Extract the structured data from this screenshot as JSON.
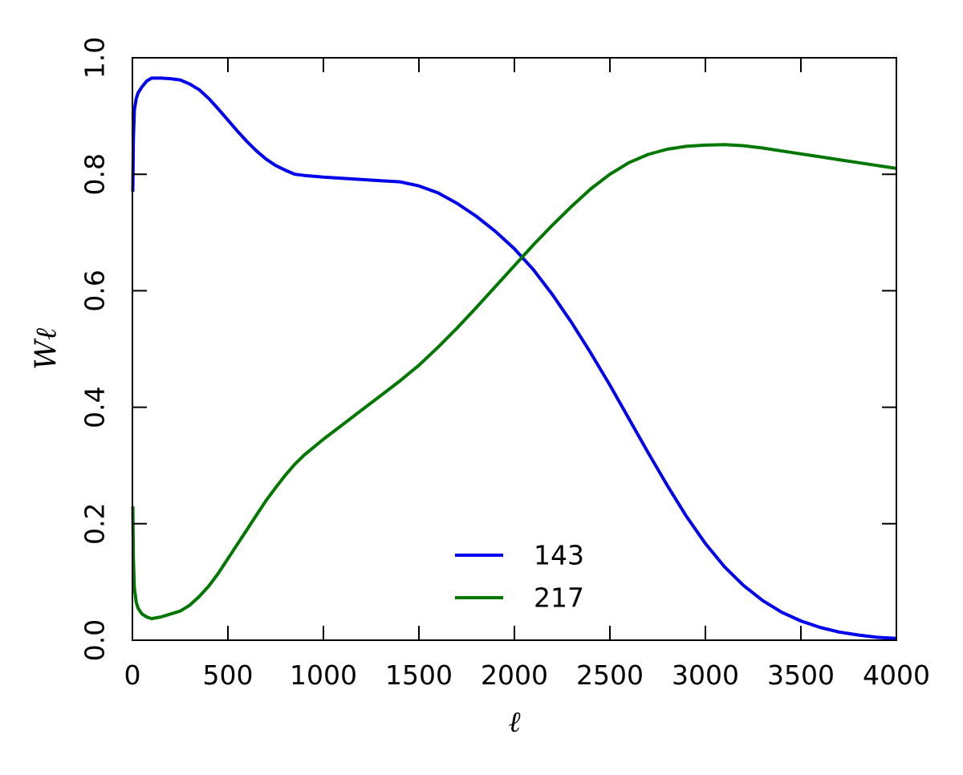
{
  "chart_data": {
    "type": "line",
    "title": "",
    "xlabel": "ℓ",
    "ylabel": "Wℓ",
    "xlim": [
      0,
      4000
    ],
    "ylim": [
      0.0,
      1.0
    ],
    "xticks": [
      "0",
      "500",
      "1000",
      "1500",
      "2000",
      "2500",
      "3000",
      "3500",
      "4000"
    ],
    "yticks": [
      "0.0",
      "0.2",
      "0.4",
      "0.6",
      "0.8",
      "1.0"
    ],
    "grid": false,
    "legend_position": "lower-center",
    "series": [
      {
        "name": "143",
        "color": "#0000ee",
        "x": [
          2,
          5,
          10,
          20,
          30,
          50,
          75,
          100,
          150,
          200,
          250,
          300,
          350,
          400,
          450,
          500,
          550,
          600,
          650,
          700,
          750,
          800,
          850,
          900,
          1000,
          1100,
          1200,
          1300,
          1400,
          1500,
          1600,
          1700,
          1800,
          1900,
          2000,
          2100,
          2200,
          2300,
          2400,
          2500,
          2600,
          2700,
          2800,
          2900,
          3000,
          3100,
          3200,
          3300,
          3400,
          3500,
          3600,
          3700,
          3800,
          3900,
          4000
        ],
        "y": [
          0.77,
          0.86,
          0.91,
          0.93,
          0.94,
          0.95,
          0.96,
          0.965,
          0.965,
          0.964,
          0.962,
          0.955,
          0.945,
          0.93,
          0.912,
          0.893,
          0.874,
          0.856,
          0.84,
          0.826,
          0.815,
          0.807,
          0.8,
          0.798,
          0.795,
          0.793,
          0.791,
          0.789,
          0.787,
          0.78,
          0.768,
          0.75,
          0.728,
          0.702,
          0.672,
          0.636,
          0.593,
          0.545,
          0.493,
          0.438,
          0.38,
          0.322,
          0.266,
          0.213,
          0.166,
          0.126,
          0.094,
          0.068,
          0.048,
          0.033,
          0.022,
          0.014,
          0.009,
          0.005,
          0.003
        ]
      },
      {
        "name": "217",
        "color": "#007700",
        "x": [
          2,
          5,
          10,
          20,
          30,
          50,
          75,
          100,
          150,
          200,
          250,
          300,
          350,
          400,
          450,
          500,
          550,
          600,
          650,
          700,
          750,
          800,
          850,
          900,
          1000,
          1100,
          1200,
          1300,
          1400,
          1500,
          1600,
          1700,
          1800,
          1900,
          2000,
          2100,
          2200,
          2300,
          2400,
          2500,
          2600,
          2700,
          2800,
          2900,
          3000,
          3100,
          3200,
          3300,
          3400,
          3500,
          3600,
          3700,
          3800,
          3900,
          4000
        ],
        "y": [
          0.23,
          0.14,
          0.09,
          0.065,
          0.055,
          0.045,
          0.04,
          0.037,
          0.04,
          0.045,
          0.05,
          0.06,
          0.075,
          0.093,
          0.115,
          0.14,
          0.165,
          0.19,
          0.215,
          0.24,
          0.262,
          0.283,
          0.302,
          0.318,
          0.345,
          0.37,
          0.395,
          0.42,
          0.445,
          0.472,
          0.503,
          0.536,
          0.571,
          0.607,
          0.643,
          0.679,
          0.713,
          0.745,
          0.775,
          0.8,
          0.82,
          0.834,
          0.843,
          0.848,
          0.85,
          0.851,
          0.849,
          0.845,
          0.84,
          0.835,
          0.83,
          0.825,
          0.82,
          0.815,
          0.81
        ]
      }
    ]
  }
}
